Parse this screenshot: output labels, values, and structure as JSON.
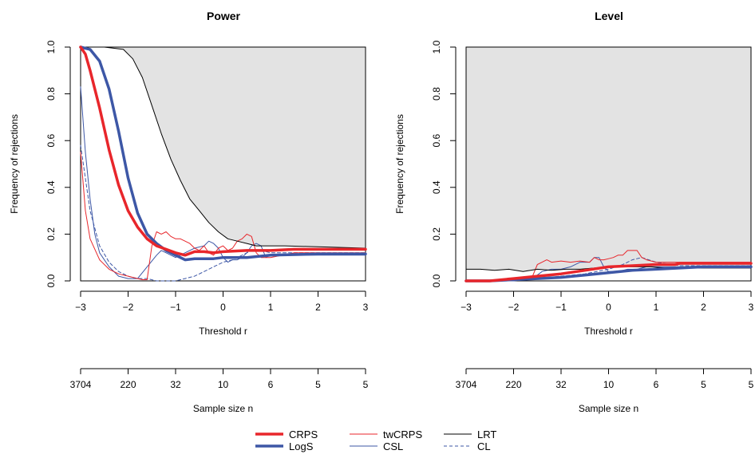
{
  "chart_data": [
    {
      "type": "line",
      "title": "Power",
      "xlabel": "Threshold r",
      "ylabel": "Frequency of rejections",
      "xlim": [
        -3,
        3
      ],
      "ylim": [
        0,
        1
      ],
      "x_ticks": [
        "−3",
        "−2",
        "−1",
        "0",
        "1",
        "2",
        "3"
      ],
      "y_ticks": [
        "0.0",
        "0.2",
        "0.4",
        "0.6",
        "0.8",
        "1.0"
      ],
      "secondary_axis": {
        "label": "Sample size n",
        "ticks": [
          "3704",
          "220",
          "32",
          "10",
          "6",
          "5",
          "5"
        ]
      },
      "shaded_region": "above LRT curve",
      "series": [
        {
          "name": "LRT",
          "x": [
            -3,
            -2.5,
            -2.1,
            -1.9,
            -1.7,
            -1.5,
            -1.3,
            -1.1,
            -0.9,
            -0.7,
            -0.5,
            -0.3,
            -0.1,
            0.1,
            0.3,
            0.5,
            0.7,
            0.9,
            1.1,
            1.3,
            3
          ],
          "y": [
            1.0,
            1.0,
            0.99,
            0.95,
            0.87,
            0.75,
            0.63,
            0.52,
            0.43,
            0.35,
            0.3,
            0.25,
            0.21,
            0.18,
            0.17,
            0.16,
            0.15,
            0.15,
            0.15,
            0.15,
            0.14
          ]
        },
        {
          "name": "CRPS",
          "x": [
            -3,
            -2.9,
            -2.8,
            -2.6,
            -2.4,
            -2.2,
            -2.0,
            -1.8,
            -1.6,
            -1.4,
            -1.2,
            -1.0,
            -0.8,
            -0.6,
            -0.4,
            -0.2,
            0,
            0.5,
            1.0,
            1.5,
            2.0,
            3
          ],
          "y": [
            1.0,
            0.97,
            0.9,
            0.74,
            0.56,
            0.41,
            0.3,
            0.23,
            0.18,
            0.15,
            0.135,
            0.12,
            0.11,
            0.125,
            0.125,
            0.12,
            0.125,
            0.13,
            0.13,
            0.135,
            0.135,
            0.135
          ]
        },
        {
          "name": "LogS",
          "x": [
            -3,
            -2.8,
            -2.6,
            -2.4,
            -2.2,
            -2.0,
            -1.8,
            -1.6,
            -1.4,
            -1.2,
            -1.0,
            -0.8,
            -0.6,
            -0.4,
            -0.2,
            0,
            0.5,
            1.0,
            2.0,
            3
          ],
          "y": [
            1.0,
            0.99,
            0.94,
            0.82,
            0.64,
            0.44,
            0.29,
            0.2,
            0.16,
            0.13,
            0.11,
            0.09,
            0.095,
            0.095,
            0.095,
            0.1,
            0.1,
            0.11,
            0.115,
            0.115
          ]
        },
        {
          "name": "twCRPS",
          "x": [
            -3,
            -2.9,
            -2.8,
            -2.6,
            -2.4,
            -2.2,
            -2.0,
            -1.8,
            -1.7,
            -1.6,
            -1.5,
            -1.4,
            -1.3,
            -1.2,
            -1.1,
            -1.0,
            -0.9,
            -0.8,
            -0.7,
            -0.6,
            -0.5,
            -0.4,
            -0.3,
            -0.2,
            -0.1,
            0,
            0.1,
            0.2,
            0.3,
            0.4,
            0.5,
            0.6,
            0.7,
            0.8,
            0.9,
            1.0,
            1.5,
            2.0,
            3
          ],
          "y": [
            0.55,
            0.3,
            0.18,
            0.09,
            0.05,
            0.03,
            0.02,
            0.01,
            0.005,
            0.005,
            0.15,
            0.21,
            0.2,
            0.21,
            0.19,
            0.18,
            0.18,
            0.17,
            0.16,
            0.14,
            0.13,
            0.15,
            0.12,
            0.11,
            0.14,
            0.15,
            0.13,
            0.14,
            0.17,
            0.18,
            0.2,
            0.19,
            0.12,
            0.1,
            0.1,
            0.1,
            0.12,
            0.12,
            0.12
          ]
        },
        {
          "name": "CSL",
          "x": [
            -3,
            -2.9,
            -2.8,
            -2.7,
            -2.6,
            -2.4,
            -2.2,
            -2.0,
            -1.8,
            -1.6,
            -1.4,
            -1.3,
            -1.2,
            -1.0,
            -0.8,
            -0.6,
            -0.4,
            -0.3,
            -0.2,
            -0.1,
            0,
            0.1,
            0.2,
            0.3,
            0.4,
            0.5,
            0.6,
            0.7,
            0.8,
            0.9,
            1.0,
            1.2,
            1.5,
            2.0,
            3
          ],
          "y": [
            0.83,
            0.55,
            0.35,
            0.2,
            0.12,
            0.06,
            0.02,
            0.01,
            0.01,
            0.06,
            0.11,
            0.13,
            0.12,
            0.1,
            0.12,
            0.14,
            0.15,
            0.17,
            0.16,
            0.14,
            0.1,
            0.08,
            0.09,
            0.09,
            0.1,
            0.12,
            0.15,
            0.16,
            0.15,
            0.1,
            0.11,
            0.11,
            0.11,
            0.11,
            0.11
          ]
        },
        {
          "name": "CL",
          "x": [
            -3,
            -2.8,
            -2.6,
            -2.4,
            -2.2,
            -2.0,
            -1.8,
            -1.6,
            -1.4,
            -1.2,
            -1.0,
            -0.8,
            -0.6,
            -0.4,
            -0.2,
            0,
            0.2,
            0.4,
            0.6,
            0.8,
            1.0,
            1.5,
            2.0,
            3
          ],
          "y": [
            0.58,
            0.3,
            0.15,
            0.08,
            0.04,
            0.02,
            0.01,
            0.01,
            0.0,
            0.0,
            0.0,
            0.01,
            0.02,
            0.04,
            0.06,
            0.08,
            0.09,
            0.11,
            0.13,
            0.13,
            0.12,
            0.12,
            0.12,
            0.12
          ]
        }
      ]
    },
    {
      "type": "line",
      "title": "Level",
      "xlabel": "Threshold r",
      "ylabel": "Frequency of rejections",
      "xlim": [
        -3,
        3
      ],
      "ylim": [
        0,
        1
      ],
      "x_ticks": [
        "−3",
        "−2",
        "−1",
        "0",
        "1",
        "2",
        "3"
      ],
      "y_ticks": [
        "0.0",
        "0.2",
        "0.4",
        "0.6",
        "0.8",
        "1.0"
      ],
      "secondary_axis": {
        "label": "Sample size n",
        "ticks": [
          "3704",
          "220",
          "32",
          "10",
          "6",
          "5",
          "5"
        ]
      },
      "shaded_region": "above LRT curve",
      "series": [
        {
          "name": "LRT",
          "x": [
            -3,
            -2.7,
            -2.4,
            -2.1,
            -1.8,
            -1.5,
            -1.2,
            -0.9,
            -0.6,
            -0.3,
            0,
            0.3,
            0.6,
            0.9,
            1.2,
            1.5,
            2.0,
            2.5,
            3
          ],
          "y": [
            0.05,
            0.05,
            0.045,
            0.05,
            0.04,
            0.05,
            0.045,
            0.05,
            0.05,
            0.055,
            0.06,
            0.06,
            0.06,
            0.06,
            0.055,
            0.055,
            0.055,
            0.055,
            0.055
          ]
        },
        {
          "name": "CRPS",
          "x": [
            -3,
            -2.5,
            -2.0,
            -1.5,
            -1.0,
            -0.5,
            0,
            0.5,
            1.0,
            1.4,
            1.5,
            2.0,
            2.5,
            3
          ],
          "y": [
            0.0,
            0.0,
            0.01,
            0.02,
            0.03,
            0.045,
            0.06,
            0.065,
            0.07,
            0.07,
            0.075,
            0.075,
            0.075,
            0.075
          ]
        },
        {
          "name": "LogS",
          "x": [
            -3,
            -2.5,
            -2.0,
            -1.5,
            -1.0,
            -0.5,
            0,
            0.5,
            1.0,
            1.5,
            2.0,
            2.5,
            3
          ],
          "y": [
            0.0,
            0.0,
            0.005,
            0.01,
            0.015,
            0.025,
            0.035,
            0.045,
            0.05,
            0.055,
            0.06,
            0.06,
            0.06
          ]
        },
        {
          "name": "twCRPS",
          "x": [
            -3,
            -2.0,
            -1.8,
            -1.6,
            -1.5,
            -1.4,
            -1.3,
            -1.2,
            -1.0,
            -0.8,
            -0.6,
            -0.4,
            -0.3,
            -0.2,
            -0.1,
            0,
            0.1,
            0.2,
            0.3,
            0.4,
            0.5,
            0.6,
            0.7,
            0.8,
            1.0,
            1.5,
            2.0,
            3
          ],
          "y": [
            0.0,
            0.005,
            0.01,
            0.02,
            0.07,
            0.08,
            0.09,
            0.08,
            0.085,
            0.08,
            0.085,
            0.08,
            0.1,
            0.09,
            0.09,
            0.095,
            0.1,
            0.11,
            0.11,
            0.13,
            0.13,
            0.13,
            0.1,
            0.09,
            0.08,
            0.08,
            0.08,
            0.08
          ]
        },
        {
          "name": "CSL",
          "x": [
            -3,
            -2.0,
            -1.6,
            -1.4,
            -1.2,
            -1.0,
            -0.8,
            -0.6,
            -0.4,
            -0.3,
            -0.2,
            -0.1,
            0,
            0.2,
            0.4,
            0.6,
            0.8,
            1.0,
            1.5,
            2.0,
            3
          ],
          "y": [
            0.0,
            0.0,
            0.01,
            0.04,
            0.05,
            0.05,
            0.06,
            0.08,
            0.08,
            0.1,
            0.1,
            0.06,
            0.04,
            0.04,
            0.05,
            0.05,
            0.06,
            0.06,
            0.06,
            0.06,
            0.06
          ]
        },
        {
          "name": "CL",
          "x": [
            -3,
            -2.0,
            -1.5,
            -1.0,
            -0.5,
            0,
            0.3,
            0.5,
            0.7,
            1.0,
            1.5,
            2.0,
            3
          ],
          "y": [
            0.0,
            0.0,
            0.01,
            0.02,
            0.03,
            0.05,
            0.07,
            0.09,
            0.1,
            0.08,
            0.065,
            0.065,
            0.065
          ]
        }
      ]
    }
  ],
  "legend": [
    {
      "name": "CRPS",
      "color": "#e8262b",
      "width": 3.5,
      "dash": ""
    },
    {
      "name": "LogS",
      "color": "#3d57a6",
      "width": 3.5,
      "dash": ""
    },
    {
      "name": "twCRPS",
      "color": "#e8262b",
      "width": 1,
      "dash": ""
    },
    {
      "name": "CSL",
      "color": "#3d57a6",
      "width": 1,
      "dash": ""
    },
    {
      "name": "LRT",
      "color": "#000000",
      "width": 1,
      "dash": ""
    },
    {
      "name": "CL",
      "color": "#3d57a6",
      "width": 1,
      "dash": "4,3"
    }
  ],
  "colors": {
    "shade": "#e3e3e3",
    "red": "#e8262b",
    "blue": "#3d57a6"
  }
}
